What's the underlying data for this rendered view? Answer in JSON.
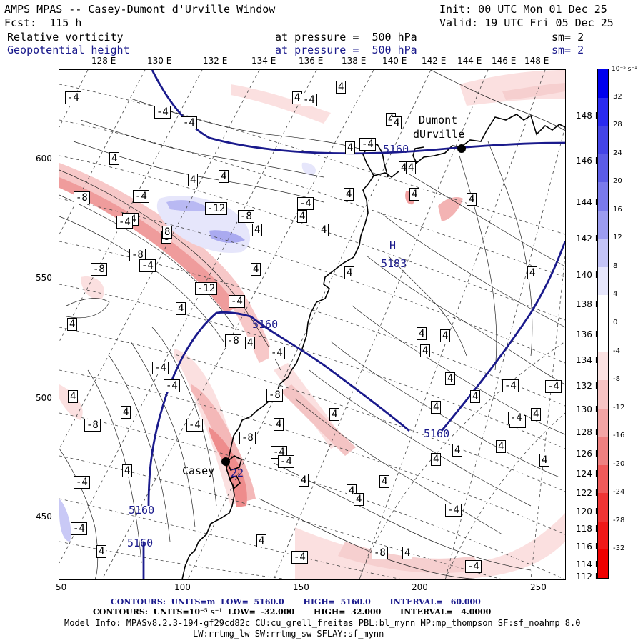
{
  "header": {
    "title": "AMPS MPAS -- Casey-Dumont d'Urville Window",
    "init": "Init: 00 UTC Mon 01 Dec 25",
    "fcst": "Fcst:  115 h",
    "valid": "Valid: 19 UTC Fri 05 Dec 25",
    "field1_name": "Relative vorticity",
    "field1_level": "at pressure =  500 hPa",
    "field1_sm": "sm= 2",
    "field2_name": "Geopotential height",
    "field2_level": "at pressure =  500 hPa",
    "field2_sm": "sm= 2"
  },
  "axes": {
    "x_ticks": [
      "50",
      "100",
      "150",
      "200",
      "250"
    ],
    "y_ticks": [
      "600",
      "550",
      "500",
      "450"
    ],
    "lon_labels": [
      "128 E",
      "130 E",
      "132 E",
      "134 E",
      "136 E",
      "138 E",
      "140 E",
      "142 E",
      "144 E",
      "146 E",
      "148 E"
    ],
    "lat_labels": [
      "148 E",
      "146 E",
      "144 E",
      "142 E",
      "140 E",
      "138 E",
      "136 E",
      "134 E",
      "132 E",
      "130 E",
      "128 E",
      "126 E",
      "124 E",
      "122 E",
      "120 E",
      "118 E",
      "116 E",
      "114 E",
      "112 E"
    ]
  },
  "colorbar": {
    "unit": "10⁻⁵ s⁻¹",
    "labels": [
      "32",
      "28",
      "24",
      "20",
      "16",
      "12",
      "8",
      "4",
      "0",
      "-4",
      "-8",
      "-12",
      "-16",
      "-20",
      "-24",
      "-28",
      "-32"
    ],
    "colors": [
      "#0000ee",
      "#2a2af0",
      "#4444e6",
      "#5c5ce6",
      "#7a7aec",
      "#9c9cf0",
      "#c4c4f6",
      "#e6e6fb",
      "#ffffff",
      "#ffffff",
      "#fbe2e2",
      "#f6c4c4",
      "#f2a4a4",
      "#ee8080",
      "#f05a5a",
      "#f03434",
      "#f01818",
      "#ee0000"
    ]
  },
  "map": {
    "height_labels": [
      "5160",
      "5160",
      "5160",
      "5160",
      "5160",
      "5183"
    ],
    "high_marker": "H",
    "stations": [
      {
        "name": "Dumont",
        "name2": "dUrville"
      },
      {
        "name": "Casey"
      }
    ],
    "vort_labels": [
      "-8",
      "-4",
      "-4",
      "-4",
      "4",
      "4",
      "4",
      "-4",
      "4",
      "4",
      "-4",
      "4",
      "4",
      "4",
      "-4",
      "4",
      "-4",
      "-12",
      "8",
      "-8",
      "4",
      "4",
      "4",
      "8",
      "4",
      "-4",
      "4",
      "-8",
      "-4",
      "4",
      "4",
      "4",
      "-12",
      "-4",
      "4",
      "4",
      "4",
      "4",
      "-8",
      "-4",
      "4",
      "4",
      "4",
      "-4",
      "4",
      "-4",
      "-4",
      "-8",
      "4",
      "-8",
      "4",
      "-4",
      "-4",
      "4",
      "-4",
      "4",
      "-4",
      "4",
      "4",
      "4",
      "-4",
      "4",
      "-8",
      "-8",
      "4",
      "-4",
      "4",
      "4",
      "4",
      "-4",
      "-4",
      "4",
      "4",
      "4",
      "-4",
      "-8",
      "-4",
      "4",
      "-4",
      "4",
      "-4",
      "4",
      "4",
      "4"
    ],
    "label_22": "22"
  },
  "footer": {
    "line1": "CONTOURS:  UNITS=m  LOW=  5160.0       HIGH=  5160.0       INTERVAL=   60.000",
    "line2": "CONTOURS:  UNITS=10⁻⁵ s⁻¹  LOW=  -32.000       HIGH=  32.000       INTERVAL=   4.0000",
    "line3": "Model Info: MPASv8.2.3-194-gf29cd82c CU:cu_grell_freitas PBL:bl_mynn MP:mp_thompson SF:sf_noahmp 8.0",
    "line4": "LW:rrtmg_lw SW:rrtmg_sw SFLAY:sf_mynn"
  }
}
